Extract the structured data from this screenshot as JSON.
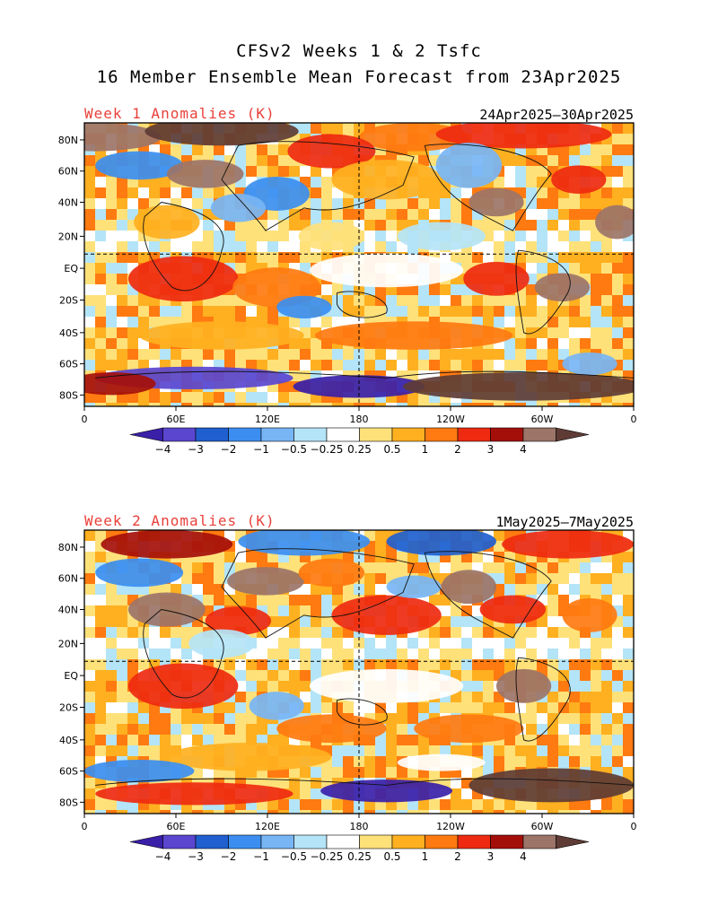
{
  "title_line1": "CFSv2 Weeks 1 & 2 Tsfc",
  "title_line2": "16 Member Ensemble Mean Forecast from 23Apr2025",
  "panels": [
    {
      "label": "Week 1 Anomalies (K)",
      "date_range": "24Apr2025—30Apr2025"
    },
    {
      "label": "Week 2 Anomalies (K)",
      "date_range": "1May2025—7May2025"
    }
  ],
  "lat_labels": [
    "80N",
    "60N",
    "40N",
    "20N",
    "EQ",
    "20S",
    "40S",
    "60S",
    "80S"
  ],
  "lon_labels": [
    "0",
    "60E",
    "120E",
    "180",
    "120W",
    "60W",
    "0"
  ],
  "colorbar": {
    "labels": [
      "−4",
      "−3",
      "−2",
      "−1",
      "−0.5",
      "−0.25",
      "0.25",
      "0.5",
      "1",
      "2",
      "3",
      "4"
    ],
    "colors": [
      "#3a1fa8",
      "#5a46cf",
      "#1f5fcf",
      "#3b8ef0",
      "#77b5f5",
      "#b4e4f7",
      "#ffffff",
      "#ffe17a",
      "#ffb020",
      "#ff7a10",
      "#ee2a10",
      "#a50f0a",
      "#9c7468",
      "#5e3c35"
    ]
  }
}
